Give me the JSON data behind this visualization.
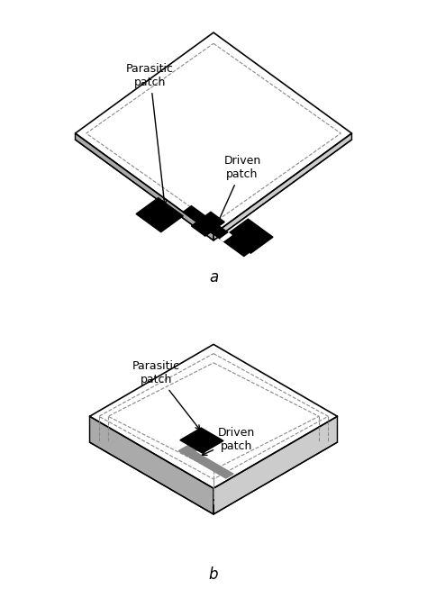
{
  "fig_width": 4.74,
  "fig_height": 6.54,
  "bg_color": "#ffffff",
  "label_a": "a",
  "label_b": "b",
  "patch_black": "#000000",
  "patch_gray": "#888888",
  "parasitic_label": "Parasitic\npatch",
  "driven_label": "Driven\npatch",
  "font_size": 9,
  "dpi": 100
}
